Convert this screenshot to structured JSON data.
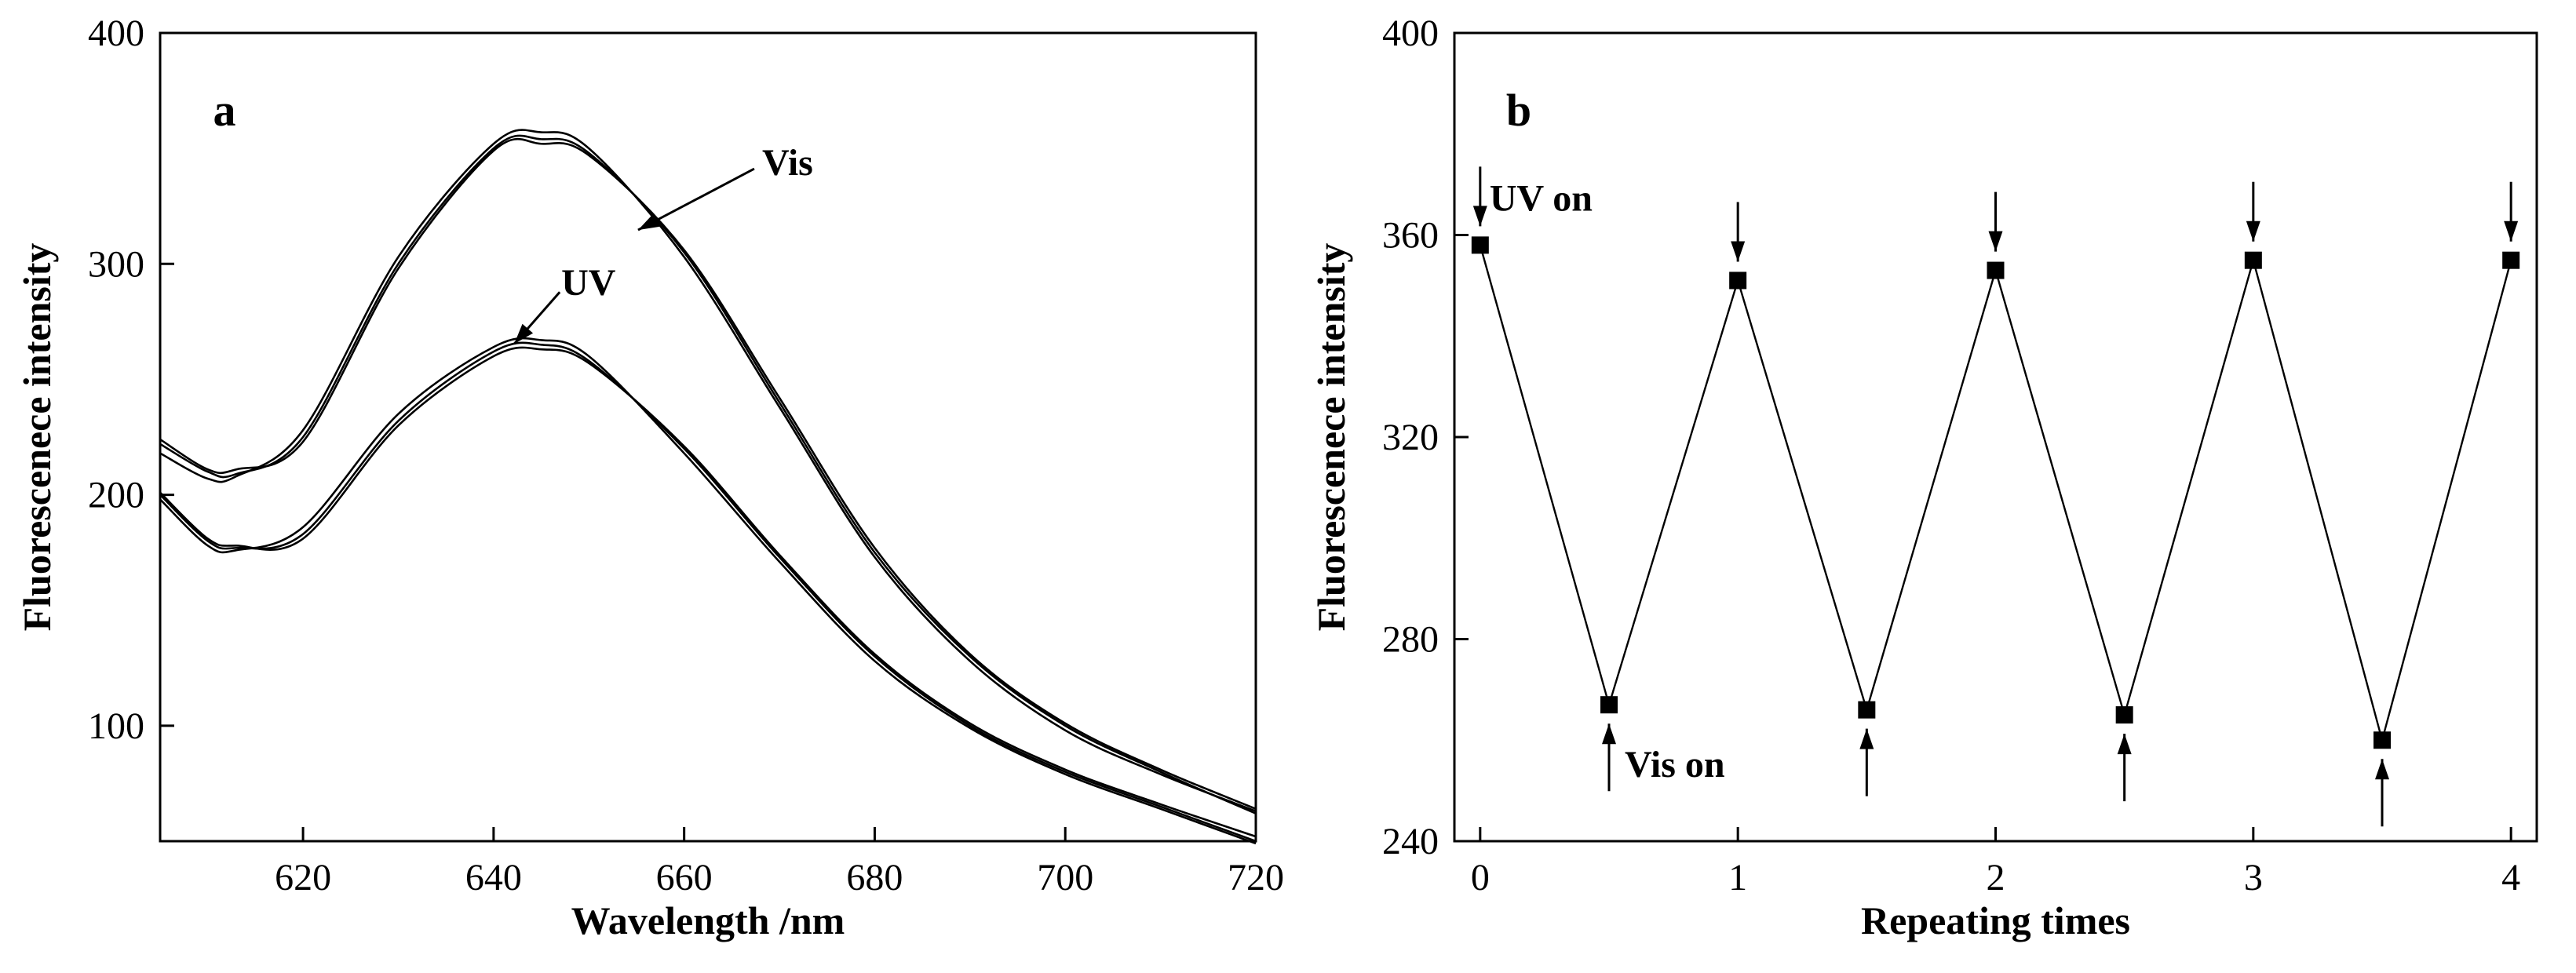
{
  "chart_data": [
    {
      "panel": "a",
      "type": "line",
      "xlabel": "Wavelength /nm",
      "ylabel": "Fluorescenece intensity",
      "xlim": [
        605,
        720
      ],
      "ylim": [
        50,
        400
      ],
      "xticks": [
        620,
        640,
        660,
        680,
        700,
        720
      ],
      "yticks": [
        100,
        200,
        300,
        400
      ],
      "x": [
        605,
        610,
        613,
        620,
        630,
        640,
        645,
        650,
        660,
        670,
        680,
        690,
        700,
        710,
        720
      ],
      "series": [
        {
          "name": "Vis 1",
          "values": [
            222,
            210,
            209,
            225,
            300,
            350,
            354,
            348,
            305,
            240,
            175,
            130,
            100,
            80,
            62
          ]
        },
        {
          "name": "Vis 2",
          "values": [
            218,
            207,
            208,
            228,
            303,
            352,
            357,
            350,
            303,
            238,
            173,
            128,
            98,
            79,
            63
          ]
        },
        {
          "name": "Vis 3",
          "values": [
            224,
            211,
            211,
            223,
            298,
            349,
            352,
            347,
            306,
            242,
            177,
            131,
            101,
            81,
            64
          ]
        },
        {
          "name": "UV 1",
          "values": [
            200,
            180,
            177,
            183,
            232,
            262,
            265,
            258,
            220,
            173,
            130,
            100,
            80,
            65,
            50
          ]
        },
        {
          "name": "UV 2",
          "values": [
            198,
            178,
            176,
            186,
            235,
            264,
            267,
            260,
            218,
            171,
            128,
            99,
            79,
            64,
            49
          ]
        },
        {
          "name": "UV 3",
          "values": [
            201,
            181,
            178,
            181,
            230,
            260,
            263,
            257,
            221,
            174,
            131,
            101,
            81,
            66,
            52
          ]
        }
      ],
      "annotations": [
        {
          "label": "Vis",
          "target_x": 655,
          "target_y": 314
        },
        {
          "label": "UV",
          "target_x": 642,
          "target_y": 264
        }
      ],
      "panel_label": "a"
    },
    {
      "panel": "b",
      "type": "line",
      "xlabel": "Repeating times",
      "ylabel": "Fluorescenece intensity",
      "xlim": [
        -0.1,
        4.1
      ],
      "ylim": [
        240,
        400
      ],
      "xticks": [
        0,
        1,
        2,
        3,
        4
      ],
      "yticks": [
        240,
        280,
        320,
        360,
        400
      ],
      "x": [
        0,
        0.5,
        1,
        1.5,
        2,
        2.5,
        3,
        3.5,
        4
      ],
      "values": [
        358,
        267,
        351,
        266,
        353,
        265,
        355,
        260,
        355
      ],
      "annotations": [
        {
          "label": "UV on",
          "x": 0
        },
        {
          "label": "Vis on",
          "x": 0.5
        }
      ],
      "panel_label": "b"
    }
  ]
}
